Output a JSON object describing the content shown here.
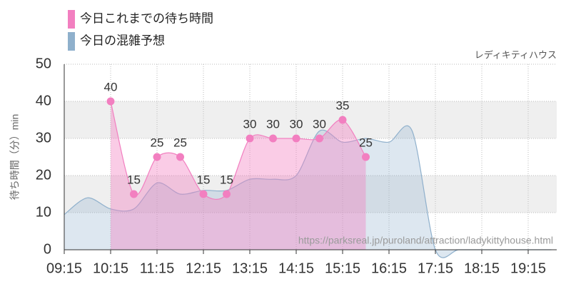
{
  "chart_data": {
    "type": "area",
    "annotation": "レディキティハウス",
    "watermark": "https://parksreal.jp/puroland/attraction/ladykittyhouse.html",
    "y_label": "待ち時間（分）min",
    "categories": [
      "09:15",
      null,
      "10:15",
      null,
      "11:15",
      null,
      "12:15",
      null,
      "13:15",
      null,
      "14:15",
      null,
      "15:15",
      null,
      "16:15",
      null,
      "17:15",
      null,
      "18:15",
      null,
      "19:15",
      null
    ],
    "series": [
      {
        "name": "今日の混雑予想",
        "color": "#8fb0cc",
        "values": [
          9.5,
          14,
          11,
          11,
          18,
          15,
          16,
          16,
          19,
          19,
          20,
          32,
          29,
          30,
          29,
          32,
          0,
          0,
          0,
          0,
          0,
          0
        ]
      },
      {
        "name": "今日これまでの待ち時間",
        "color": "#f27fc0",
        "values": [
          null,
          null,
          40,
          15,
          25,
          25,
          15,
          15,
          30,
          30,
          30,
          30,
          35,
          25,
          null,
          null,
          null,
          null,
          null,
          null,
          null,
          null
        ]
      }
    ],
    "ylim": [
      0,
      50
    ],
    "yticks": [
      0,
      10,
      20,
      30,
      40,
      50
    ],
    "grid": true
  }
}
